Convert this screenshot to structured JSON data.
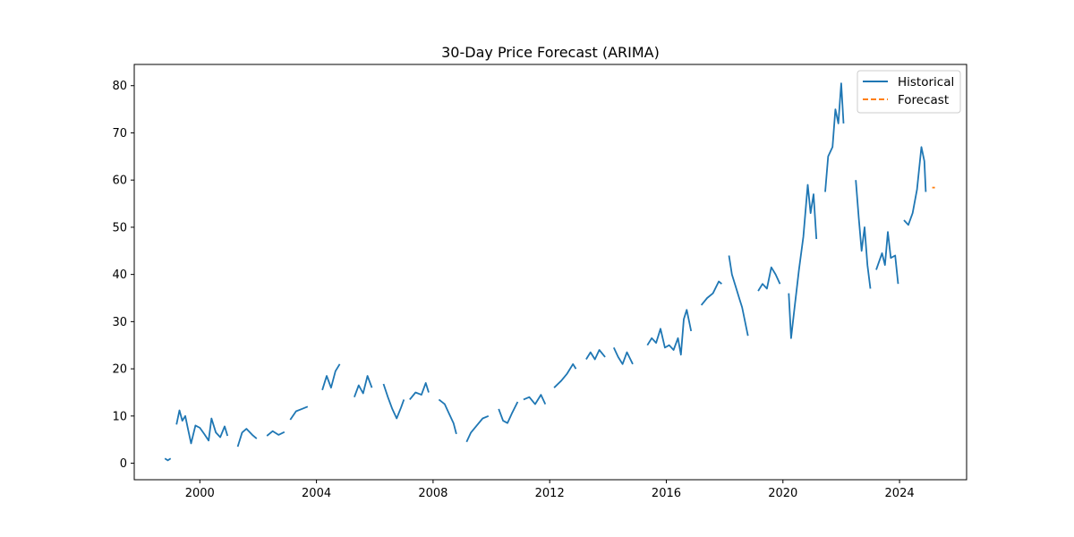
{
  "chart_data": {
    "type": "line",
    "title": "30-Day Price Forecast (ARIMA)",
    "xlabel": "",
    "ylabel": "",
    "xlim": [
      1997.75,
      2026.3
    ],
    "ylim": [
      -3.5,
      84.5
    ],
    "x_ticks": [
      2000,
      2004,
      2008,
      2012,
      2016,
      2020,
      2024
    ],
    "x_tick_labels": [
      "2000",
      "2004",
      "2008",
      "2012",
      "2016",
      "2020",
      "2024"
    ],
    "y_ticks": [
      0,
      10,
      20,
      30,
      40,
      50,
      60,
      70,
      80
    ],
    "y_tick_labels": [
      "0",
      "10",
      "20",
      "30",
      "40",
      "50",
      "60",
      "70",
      "80"
    ],
    "grid": false,
    "legend_position": "top-right",
    "series": [
      {
        "name": "Historical",
        "color": "#1f77b4",
        "style": "solid",
        "segments": [
          [
            [
              1998.8,
              1.0
            ],
            [
              1998.9,
              0.6
            ],
            [
              1999.0,
              1.0
            ]
          ],
          [
            [
              1999.2,
              8.2
            ],
            [
              1999.3,
              11.2
            ],
            [
              1999.4,
              9.0
            ],
            [
              1999.5,
              10.0
            ],
            [
              1999.6,
              7.0
            ],
            [
              1999.7,
              4.2
            ],
            [
              1999.85,
              8.0
            ],
            [
              2000.0,
              7.5
            ],
            [
              2000.15,
              6.2
            ],
            [
              2000.3,
              4.8
            ],
            [
              2000.4,
              9.5
            ],
            [
              2000.55,
              6.5
            ],
            [
              2000.7,
              5.5
            ],
            [
              2000.85,
              7.8
            ],
            [
              2000.95,
              5.8
            ]
          ],
          [
            [
              2001.3,
              3.5
            ],
            [
              2001.45,
              6.5
            ],
            [
              2001.6,
              7.3
            ],
            [
              2001.8,
              6.0
            ],
            [
              2001.95,
              5.2
            ]
          ],
          [
            [
              2002.3,
              5.8
            ],
            [
              2002.5,
              6.8
            ],
            [
              2002.7,
              6.0
            ],
            [
              2002.9,
              6.6
            ]
          ],
          [
            [
              2003.1,
              9.2
            ],
            [
              2003.3,
              11.0
            ],
            [
              2003.5,
              11.5
            ],
            [
              2003.7,
              12.0
            ]
          ],
          [
            [
              2004.2,
              15.5
            ],
            [
              2004.35,
              18.5
            ],
            [
              2004.5,
              16.0
            ],
            [
              2004.65,
              19.5
            ],
            [
              2004.8,
              21.0
            ]
          ],
          [
            [
              2005.3,
              14.0
            ],
            [
              2005.45,
              16.5
            ],
            [
              2005.6,
              14.8
            ],
            [
              2005.75,
              18.5
            ],
            [
              2005.9,
              16.0
            ]
          ],
          [
            [
              2006.3,
              16.8
            ],
            [
              2006.45,
              14.0
            ],
            [
              2006.6,
              11.5
            ],
            [
              2006.75,
              9.5
            ],
            [
              2006.9,
              11.8
            ],
            [
              2007.0,
              13.5
            ]
          ],
          [
            [
              2007.2,
              13.5
            ],
            [
              2007.4,
              15.0
            ],
            [
              2007.6,
              14.5
            ],
            [
              2007.75,
              17.0
            ],
            [
              2007.85,
              15.0
            ]
          ],
          [
            [
              2008.2,
              13.5
            ],
            [
              2008.4,
              12.5
            ],
            [
              2008.55,
              10.5
            ],
            [
              2008.7,
              8.5
            ],
            [
              2008.8,
              6.2
            ]
          ],
          [
            [
              2009.15,
              4.5
            ],
            [
              2009.3,
              6.5
            ],
            [
              2009.5,
              8.0
            ],
            [
              2009.7,
              9.5
            ],
            [
              2009.9,
              10.0
            ]
          ],
          [
            [
              2010.25,
              11.5
            ],
            [
              2010.4,
              9.0
            ],
            [
              2010.55,
              8.5
            ],
            [
              2010.7,
              10.5
            ],
            [
              2010.9,
              13.0
            ]
          ],
          [
            [
              2011.1,
              13.5
            ],
            [
              2011.3,
              14.0
            ],
            [
              2011.5,
              12.5
            ],
            [
              2011.7,
              14.5
            ],
            [
              2011.85,
              12.5
            ]
          ],
          [
            [
              2012.15,
              16.0
            ],
            [
              2012.4,
              17.5
            ],
            [
              2012.6,
              19.0
            ],
            [
              2012.8,
              21.0
            ],
            [
              2012.9,
              20.0
            ]
          ],
          [
            [
              2013.25,
              22.0
            ],
            [
              2013.4,
              23.5
            ],
            [
              2013.55,
              22.0
            ],
            [
              2013.7,
              24.0
            ],
            [
              2013.9,
              22.5
            ]
          ],
          [
            [
              2014.2,
              24.5
            ],
            [
              2014.35,
              22.5
            ],
            [
              2014.5,
              21.0
            ],
            [
              2014.65,
              23.5
            ],
            [
              2014.85,
              21.0
            ]
          ],
          [
            [
              2015.35,
              25.0
            ],
            [
              2015.5,
              26.5
            ],
            [
              2015.65,
              25.5
            ],
            [
              2015.8,
              28.5
            ],
            [
              2015.95,
              24.5
            ],
            [
              2016.1,
              25.0
            ],
            [
              2016.25,
              24.0
            ],
            [
              2016.4,
              26.5
            ],
            [
              2016.5,
              23.0
            ],
            [
              2016.6,
              30.5
            ],
            [
              2016.7,
              32.5
            ],
            [
              2016.85,
              28.0
            ]
          ],
          [
            [
              2017.2,
              33.5
            ],
            [
              2017.4,
              35.0
            ],
            [
              2017.6,
              36.0
            ],
            [
              2017.8,
              38.5
            ],
            [
              2017.9,
              38.0
            ]
          ],
          [
            [
              2018.15,
              44.0
            ],
            [
              2018.25,
              40.0
            ],
            [
              2018.4,
              37.0
            ],
            [
              2018.5,
              35.0
            ],
            [
              2018.6,
              33.0
            ],
            [
              2018.8,
              27.0
            ]
          ],
          [
            [
              2019.15,
              36.5
            ],
            [
              2019.3,
              38.0
            ],
            [
              2019.45,
              37.0
            ],
            [
              2019.6,
              41.5
            ],
            [
              2019.75,
              40.0
            ],
            [
              2019.9,
              38.0
            ]
          ],
          [
            [
              2020.2,
              36.0
            ],
            [
              2020.28,
              26.5
            ],
            [
              2020.4,
              33.0
            ],
            [
              2020.55,
              41.0
            ],
            [
              2020.7,
              48.0
            ],
            [
              2020.85,
              59.0
            ],
            [
              2020.95,
              53.0
            ],
            [
              2021.05,
              57.0
            ],
            [
              2021.15,
              47.5
            ]
          ],
          [
            [
              2021.45,
              57.5
            ],
            [
              2021.55,
              65.0
            ],
            [
              2021.7,
              67.0
            ],
            [
              2021.8,
              75.0
            ],
            [
              2021.9,
              72.0
            ],
            [
              2022.0,
              80.5
            ],
            [
              2022.08,
              72.0
            ]
          ],
          [
            [
              2022.5,
              60.0
            ],
            [
              2022.6,
              52.0
            ],
            [
              2022.7,
              45.0
            ],
            [
              2022.8,
              50.0
            ],
            [
              2022.9,
              42.0
            ],
            [
              2023.0,
              37.0
            ]
          ],
          [
            [
              2023.2,
              41.0
            ],
            [
              2023.4,
              44.5
            ],
            [
              2023.5,
              42.0
            ],
            [
              2023.6,
              49.0
            ],
            [
              2023.7,
              43.5
            ],
            [
              2023.85,
              44.0
            ],
            [
              2023.95,
              38.0
            ]
          ],
          [
            [
              2024.15,
              51.5
            ],
            [
              2024.3,
              50.5
            ],
            [
              2024.45,
              53.0
            ],
            [
              2024.6,
              58.0
            ],
            [
              2024.75,
              67.0
            ],
            [
              2024.85,
              64.0
            ],
            [
              2024.9,
              57.5
            ]
          ]
        ]
      },
      {
        "name": "Forecast",
        "color": "#ff7f0e",
        "style": "dashed",
        "x": [
          2025.12,
          2025.22
        ],
        "values": [
          58.4,
          58.4
        ]
      }
    ]
  }
}
